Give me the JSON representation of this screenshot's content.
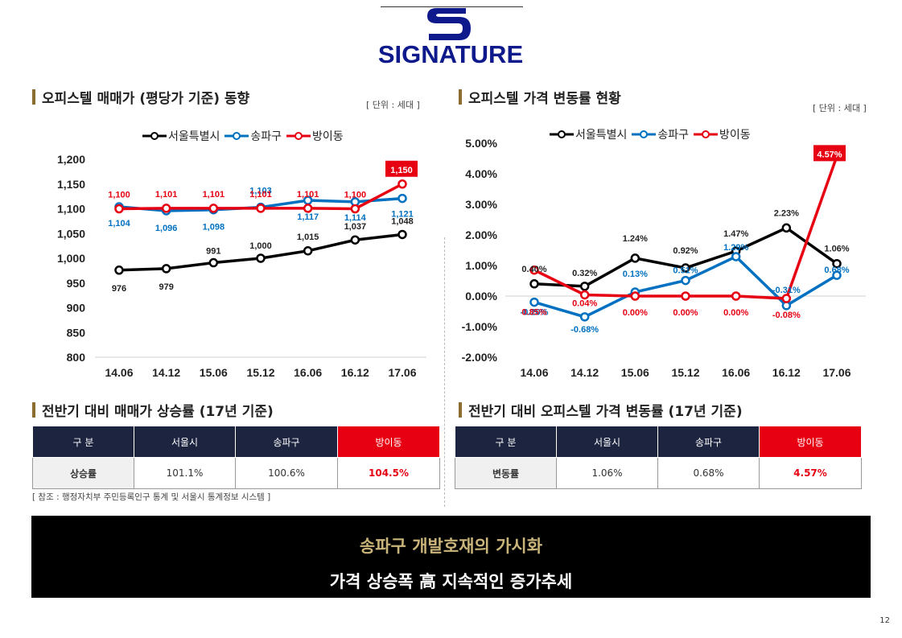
{
  "logo": {
    "text": "SIGNATURE"
  },
  "left_chart": {
    "section_title": "오피스텔 매매가 (평당가 기준) 동향",
    "unit": "[ 단위 : 세대 ]"
  },
  "right_chart": {
    "section_title": "오피스텔 가격 변동률 현황",
    "unit": "[ 단위 : 세대 ]"
  },
  "legend": [
    "서울특별시",
    "송파구",
    "방이동"
  ],
  "colors": {
    "seoul": "#000000",
    "songpa": "#0070c0",
    "bangi": "#e60012",
    "navy": "#1c2440",
    "gold": "#8a6d2f"
  },
  "chart_data": [
    {
      "type": "line",
      "x": [
        "14.06",
        "14.12",
        "15.06",
        "15.12",
        "16.06",
        "16.12",
        "17.06"
      ],
      "ylim": [
        800,
        1200
      ],
      "yticks": [
        "800",
        "850",
        "900",
        "950",
        "1,000",
        "1,050",
        "1,100",
        "1,150",
        "1,200"
      ],
      "series": [
        {
          "name": "서울특별시",
          "values": [
            976,
            979,
            991,
            1000,
            1015,
            1037,
            1048
          ],
          "labels": [
            "976",
            "979",
            "991",
            "1,000",
            "1,015",
            "1,037",
            "1,048"
          ]
        },
        {
          "name": "송파구",
          "values": [
            1104,
            1096,
            1098,
            1103,
            1117,
            1114,
            1121
          ],
          "labels": [
            "1,104",
            "1,096",
            "1,098",
            "1,103",
            "1,117",
            "1,114",
            "1,121"
          ]
        },
        {
          "name": "방이동",
          "values": [
            1100,
            1101,
            1101,
            1101,
            1101,
            1100,
            1150
          ],
          "labels": [
            "1,100",
            "1,101",
            "1,101",
            "1,101",
            "1,101",
            "1,100",
            "1,150"
          ]
        }
      ],
      "grid": false,
      "legend": "top"
    },
    {
      "type": "line",
      "x": [
        "14.06",
        "14.12",
        "15.06",
        "15.12",
        "16.06",
        "16.12",
        "17.06"
      ],
      "ylim": [
        -2.0,
        5.0
      ],
      "yticks": [
        "-2.00%",
        "-1.00%",
        "0.00%",
        "1.00%",
        "2.00%",
        "3.00%",
        "4.00%",
        "5.00%"
      ],
      "series": [
        {
          "name": "서울특별시",
          "values": [
            0.4,
            0.32,
            1.24,
            0.92,
            1.47,
            2.23,
            1.06
          ],
          "labels": [
            "0.40%",
            "0.32%",
            "1.24%",
            "0.92%",
            "1.47%",
            "2.23%",
            "1.06%"
          ]
        },
        {
          "name": "송파구",
          "values": [
            -0.2,
            -0.68,
            0.13,
            0.51,
            1.29,
            -0.31,
            0.68
          ],
          "labels": [
            "-0.20%",
            "-0.68%",
            "0.13%",
            "0.51%",
            "1.29%",
            "-0.31%",
            "0.68%"
          ]
        },
        {
          "name": "방이동",
          "values": [
            0.85,
            0.04,
            0.0,
            0.0,
            0.0,
            -0.08,
            4.57
          ],
          "labels": [
            "0.85%",
            "0.04%",
            "0.00%",
            "0.00%",
            "0.00%",
            "-0.08%",
            "4.57%"
          ]
        }
      ],
      "grid": false,
      "legend": "top"
    }
  ],
  "table_left": {
    "section_title": "전반기 대비 매매가 상승률 (17년 기준)",
    "headers": [
      "구  분",
      "서울시",
      "송파구",
      "방이동"
    ],
    "row_label": "상승률",
    "values": [
      "101.1%",
      "100.6%",
      "104.5%"
    ]
  },
  "table_right": {
    "section_title": "전반기 대비 오피스텔 가격 변동률 (17년 기준)",
    "headers": [
      "구  분",
      "서울시",
      "송파구",
      "방이동"
    ],
    "row_label": "변동률",
    "values": [
      "1.06%",
      "0.68%",
      "4.57%"
    ]
  },
  "source_note": "[ 참조 : 행정자치부 주민등록인구 통계 및 서울시 통계정보 시스템 ]",
  "banner": {
    "line1": "송파구 개발호재의 가시화",
    "line2": "가격 상승폭 高 지속적인 증가추세"
  },
  "page_number": "12"
}
